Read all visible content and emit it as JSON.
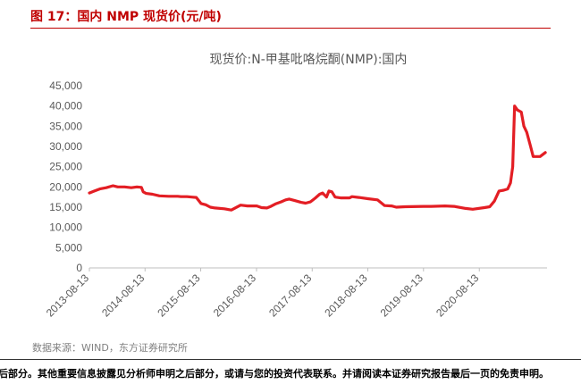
{
  "figure_title": "图 17：国内 NMP 现货价(元/吨)",
  "source": "数据来源：WIND，东方证券研究所",
  "disclaimer": "后部分。其他重要信息披露见分析师申明之后部分，或请与您的投资代表联系。并请阅读本证券研究报告最后一页的免责申明。",
  "colors": {
    "accent": "#c00000",
    "series": "#e31e24",
    "axis": "#bfbfbf",
    "text": "#595959"
  },
  "chart_data": {
    "type": "line",
    "title": "现货价:N-甲基吡咯烷酮(NMP):国内",
    "xlabel": "",
    "ylabel": "",
    "ylim": [
      0,
      45000
    ],
    "yticks": [
      0,
      5000,
      10000,
      15000,
      20000,
      25000,
      30000,
      35000,
      40000,
      45000
    ],
    "ytick_labels": [
      "0",
      "5,000",
      "10,000",
      "15,000",
      "20,000",
      "25,000",
      "30,000",
      "35,000",
      "40,000",
      "45,000"
    ],
    "xlim": [
      "2013-08-13",
      "2021-10-31"
    ],
    "xticks": [
      "2013-08-13",
      "2014-08-13",
      "2015-08-13",
      "2016-08-13",
      "2017-08-13",
      "2018-08-13",
      "2019-08-13",
      "2020-08-13"
    ],
    "grid": false,
    "legend": "none",
    "series": [
      {
        "x": [
          "2013-08-13",
          "2013-09-15",
          "2013-10-20",
          "2013-12-01",
          "2014-01-15",
          "2014-02-15",
          "2014-04-01",
          "2014-05-15",
          "2014-06-20",
          "2014-07-20",
          "2014-08-01",
          "2014-08-20",
          "2014-10-01",
          "2014-11-15",
          "2015-01-15",
          "2015-03-15",
          "2015-04-05",
          "2015-05-15",
          "2015-06-15",
          "2015-07-15",
          "2015-08-15",
          "2015-09-15",
          "2015-10-15",
          "2015-11-15",
          "2016-01-15",
          "2016-03-01",
          "2016-05-01",
          "2016-06-15",
          "2016-07-15",
          "2016-08-15",
          "2016-09-15",
          "2016-10-20",
          "2016-11-15",
          "2016-12-15",
          "2017-01-20",
          "2017-02-20",
          "2017-03-15",
          "2017-04-15",
          "2017-06-01",
          "2017-07-01",
          "2017-08-01",
          "2017-09-01",
          "2017-10-01",
          "2017-10-20",
          "2017-11-15",
          "2017-12-01",
          "2017-12-20",
          "2018-01-10",
          "2018-02-15",
          "2018-04-15",
          "2018-05-01",
          "2018-06-15",
          "2018-08-13",
          "2018-10-15",
          "2018-12-01",
          "2019-01-15",
          "2019-02-15",
          "2019-04-15",
          "2019-08-13",
          "2019-10-01",
          "2020-01-01",
          "2020-03-01",
          "2020-05-15",
          "2020-07-01",
          "2020-09-15",
          "2020-10-20",
          "2020-11-20",
          "2020-12-20",
          "2021-01-20",
          "2021-02-15",
          "2021-03-05",
          "2021-03-20",
          "2021-04-01",
          "2021-04-20",
          "2021-05-15",
          "2021-06-01",
          "2021-06-20",
          "2021-07-15",
          "2021-08-01",
          "2021-08-20",
          "2021-09-15",
          "2021-10-20"
        ],
        "values": [
          18500,
          19000,
          19500,
          19800,
          20300,
          20000,
          20000,
          19800,
          20000,
          19900,
          18800,
          18400,
          18200,
          17800,
          17700,
          17700,
          17600,
          17600,
          17500,
          17400,
          15900,
          15600,
          15000,
          14800,
          14600,
          14300,
          15500,
          15300,
          15300,
          15300,
          14900,
          14800,
          15200,
          15800,
          16300,
          16800,
          17000,
          16700,
          16200,
          16000,
          16300,
          17200,
          18200,
          18500,
          17500,
          19000,
          18800,
          17500,
          17300,
          17300,
          17600,
          17400,
          17100,
          16800,
          15400,
          15300,
          15000,
          15100,
          15200,
          15200,
          15300,
          15200,
          14700,
          14500,
          14900,
          15100,
          16500,
          19000,
          19200,
          19500,
          21000,
          25000,
          40000,
          39000,
          38500,
          35000,
          33500,
          30000,
          27500,
          27500,
          27500,
          28500
        ]
      }
    ]
  }
}
